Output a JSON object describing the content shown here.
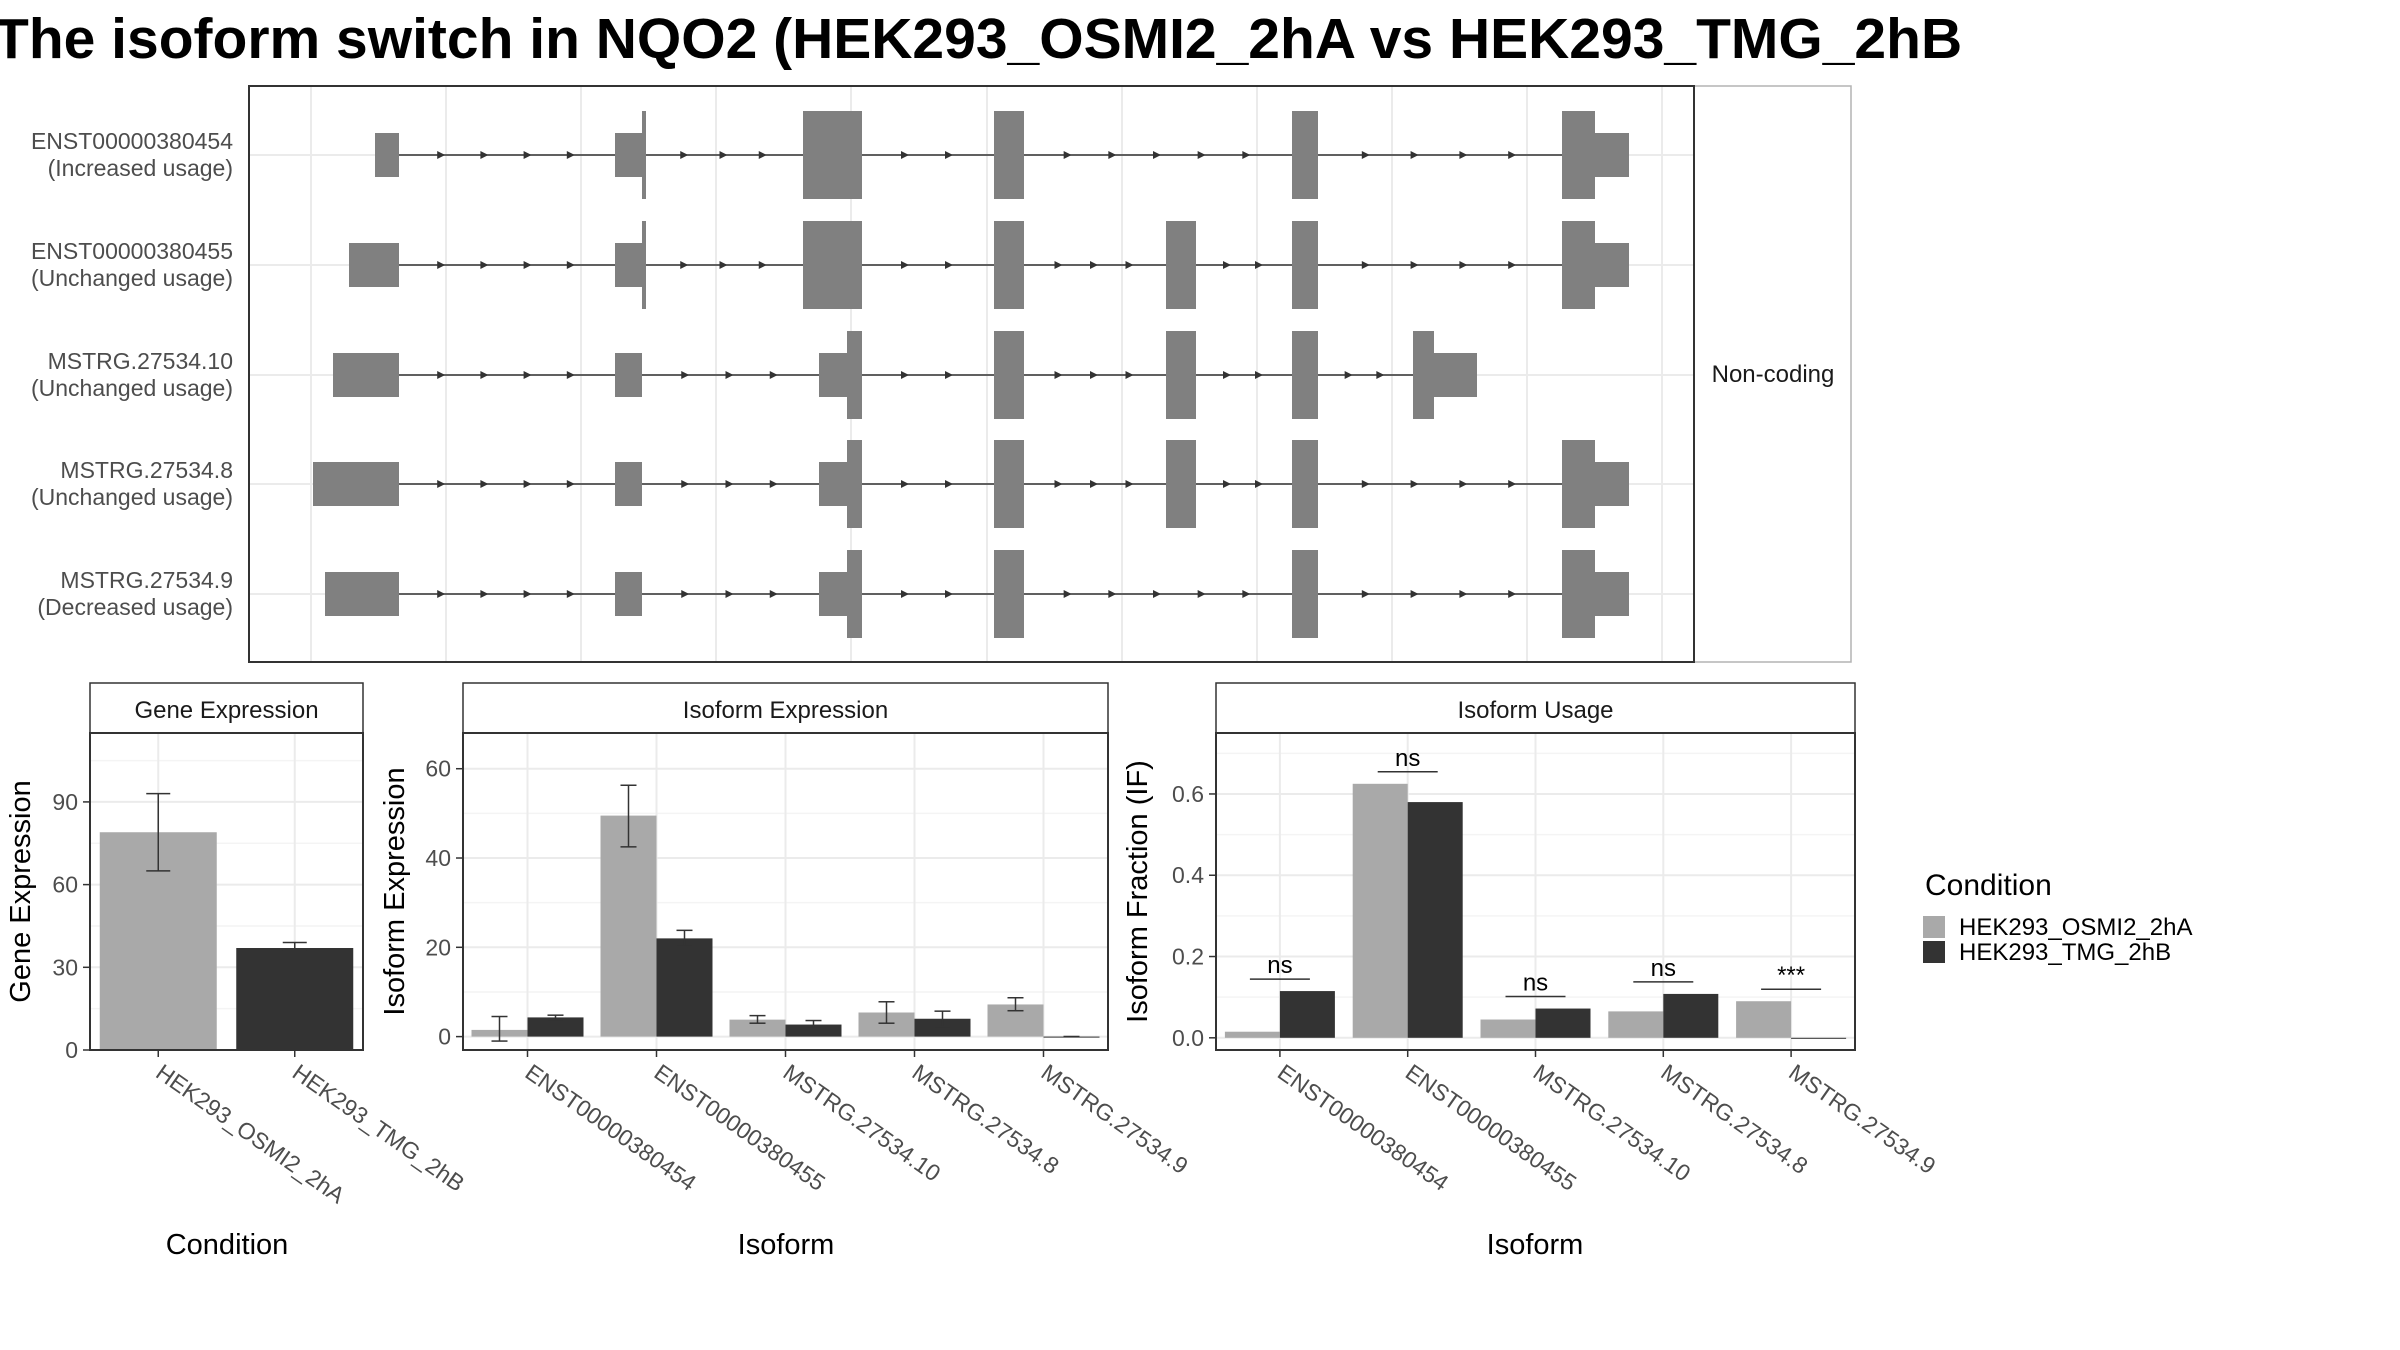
{
  "title": "The isoform switch in NQO2 (HEK293_OSMI2_2hA vs HEK293_TMG_2hB",
  "colors": {
    "cond1": "#a9a9a9",
    "cond2": "#333333",
    "exon": "#808080",
    "grid": "#ebebeb",
    "panel_border": "#333333",
    "strip_border": "#b3b3b3"
  },
  "chart_data": [
    {
      "type": "gene-structure",
      "name": "transcripts",
      "side_label": "Non-coding",
      "transcripts": [
        {
          "id": "ENST00000380454",
          "usage": "(Increased usage)"
        },
        {
          "id": "ENST00000380455",
          "usage": "(Unchanged usage)"
        },
        {
          "id": "MSTRG.27534.10",
          "usage": "(Unchanged usage)"
        },
        {
          "id": "MSTRG.27534.8",
          "usage": "(Unchanged usage)"
        },
        {
          "id": "MSTRG.27534.9",
          "usage": "(Decreased usage)"
        }
      ]
    },
    {
      "type": "bar",
      "name": "gene_expression",
      "title": "Gene Expression",
      "xlabel": "Condition",
      "ylabel": "Gene Expression",
      "ylim": [
        0,
        115
      ],
      "yticks": [
        0,
        30,
        60,
        90
      ],
      "categories": [
        "HEK293_OSMI2_2hA",
        "HEK293_TMG_2hB"
      ],
      "values": [
        79,
        37
      ],
      "errors": [
        [
          65,
          93
        ],
        [
          36,
          39
        ]
      ]
    },
    {
      "type": "bar",
      "name": "isoform_expression",
      "title": "Isoform Expression",
      "xlabel": "Isoform",
      "ylabel": "Isoform Expression",
      "ylim": [
        -3,
        68
      ],
      "yticks": [
        0,
        20,
        40,
        60
      ],
      "categories": [
        "ENST00000380454",
        "ENST00000380455",
        "MSTRG.27534.10",
        "MSTRG.27534.8",
        "MSTRG.27534.9"
      ],
      "series": [
        {
          "name": "HEK293_OSMI2_2hA",
          "values": [
            1.5,
            49.5,
            3.8,
            5.4,
            7.2
          ],
          "errors": [
            [
              -1,
              4.5
            ],
            [
              42.5,
              56.3
            ],
            [
              3,
              4.7
            ],
            [
              3,
              7.8
            ],
            [
              5.8,
              8.7
            ]
          ]
        },
        {
          "name": "HEK293_TMG_2hB",
          "values": [
            4.3,
            22,
            2.7,
            4,
            0
          ],
          "errors": [
            [
              3.8,
              4.8
            ],
            [
              20.2,
              23.8
            ],
            [
              1.9,
              3.6
            ],
            [
              2.3,
              5.7
            ],
            [
              0,
              0
            ]
          ]
        }
      ]
    },
    {
      "type": "bar",
      "name": "isoform_usage",
      "title": "Isoform Usage",
      "xlabel": "Isoform",
      "ylabel": "Isoform Fraction (IF)",
      "ylim": [
        -0.03,
        0.75
      ],
      "yticks": [
        0.0,
        0.2,
        0.4,
        0.6
      ],
      "categories": [
        "ENST00000380454",
        "ENST00000380455",
        "MSTRG.27534.10",
        "MSTRG.27534.8",
        "MSTRG.27534.9"
      ],
      "series": [
        {
          "name": "HEK293_OSMI2_2hA",
          "values": [
            0.015,
            0.625,
            0.045,
            0.065,
            0.09
          ]
        },
        {
          "name": "HEK293_TMG_2hB",
          "values": [
            0.115,
            0.58,
            0.072,
            0.108,
            0.0
          ]
        }
      ],
      "significance": [
        "ns",
        "ns",
        "ns",
        "ns",
        "***"
      ]
    }
  ],
  "legend": {
    "title": "Condition",
    "items": [
      "HEK293_OSMI2_2hA",
      "HEK293_TMG_2hB"
    ]
  }
}
